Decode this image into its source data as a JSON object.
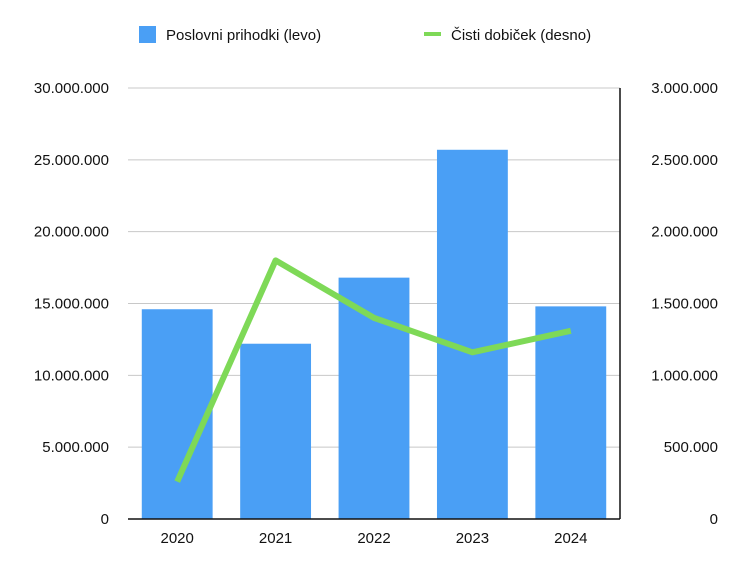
{
  "chart_data": {
    "type": "bar",
    "categories": [
      "2020",
      "2021",
      "2022",
      "2023",
      "2024"
    ],
    "series": [
      {
        "name": "Poslovni prihodki (levo)",
        "kind": "bar",
        "axis": "left",
        "color": "#4a9ff5",
        "values": [
          14600000,
          12200000,
          16800000,
          25700000,
          14800000
        ]
      },
      {
        "name": "Čisti dobiček (desno)",
        "kind": "line",
        "axis": "right",
        "color": "#7ed957",
        "values": [
          260000,
          1800000,
          1400000,
          1160000,
          1310000
        ]
      }
    ],
    "y_left": {
      "ylim": [
        0,
        30000000
      ],
      "ticks": [
        0,
        5000000,
        10000000,
        15000000,
        20000000,
        25000000,
        30000000
      ],
      "tick_labels": [
        "0",
        "5.000.000",
        "10.000.000",
        "15.000.000",
        "20.000.000",
        "25.000.000",
        "30.000.000"
      ]
    },
    "y_right": {
      "ylim": [
        0,
        3000000
      ],
      "ticks": [
        0,
        500000,
        1000000,
        1500000,
        2000000,
        2500000,
        3000000
      ],
      "tick_labels": [
        "0",
        "500.000",
        "1.000.000",
        "1.500.000",
        "2.000.000",
        "2.500.000",
        "3.000.000"
      ]
    },
    "grid": true,
    "legend_position": "top"
  }
}
